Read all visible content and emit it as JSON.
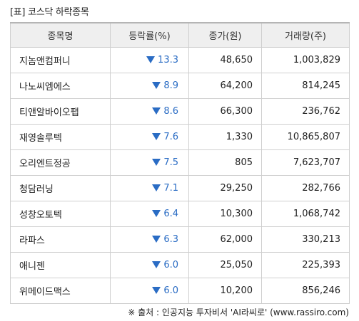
{
  "title": "[표] 코스닥 하락종목",
  "headers": [
    "종목명",
    "등락률(%)",
    "종가(원)",
    "거래량(주)"
  ],
  "rows": [
    {
      "name": "지놈앤컴퍼니",
      "rate": "13.3",
      "price": "48,650",
      "volume": "1,003,829"
    },
    {
      "name": "나노씨엠에스",
      "rate": "8.9",
      "price": "64,200",
      "volume": "814,245"
    },
    {
      "name": "티앤알바이오팹",
      "rate": "8.6",
      "price": "66,300",
      "volume": "236,762"
    },
    {
      "name": "재영솔루텍",
      "rate": "7.6",
      "price": "1,330",
      "volume": "10,865,807"
    },
    {
      "name": "오리엔트정공",
      "rate": "7.5",
      "price": "805",
      "volume": "7,623,707"
    },
    {
      "name": "청담러닝",
      "rate": "7.1",
      "price": "29,250",
      "volume": "282,766"
    },
    {
      "name": "성창오토텍",
      "rate": "6.4",
      "price": "10,300",
      "volume": "1,068,742"
    },
    {
      "name": "라파스",
      "rate": "6.3",
      "price": "62,000",
      "volume": "330,213"
    },
    {
      "name": "애니젠",
      "rate": "6.0",
      "price": "25,050",
      "volume": "225,393"
    },
    {
      "name": "위메이드맥스",
      "rate": "6.0",
      "price": "10,200",
      "volume": "856,246"
    }
  ],
  "down_color": "#2a6cc4",
  "source": "※ 출처 : 인공지능 투자비서 'AI라씨로' (www.rassiro.com)"
}
